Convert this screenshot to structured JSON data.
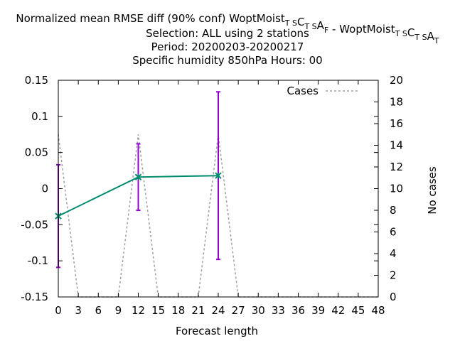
{
  "chart_data": {
    "type": "line",
    "title_lines": [
      "Normalized mean RMSE diff (90% conf) WoptMoist_TSC_TSA_F - WoptMoist_TSC_TSA_T",
      "Selection: ALL using     2 stations",
      "Period: 20200203-20200217",
      "Specific humidity 850hPa   Hours:  00"
    ],
    "title_first": {
      "parts": [
        {
          "text": "Normalized mean RMSE diff (90% conf) WoptMoist",
          "sub": false
        },
        {
          "text": "T S",
          "sub": true
        },
        {
          "text": "C",
          "sub": false
        },
        {
          "text": "T S",
          "sub": true
        },
        {
          "text": "A",
          "sub": false
        },
        {
          "text": "F",
          "sub": true
        },
        {
          "text": " - WoptMoist",
          "sub": false
        },
        {
          "text": "T S",
          "sub": true
        },
        {
          "text": "C",
          "sub": false
        },
        {
          "text": "T S",
          "sub": true
        },
        {
          "text": "A",
          "sub": false
        },
        {
          "text": "T",
          "sub": true
        }
      ]
    },
    "title_rest": [
      "Selection: ALL using     2 stations",
      "Period: 20200203-20200217",
      "Specific humidity 850hPa   Hours:  00"
    ],
    "xlabel": "Forecast length",
    "ylabel": "",
    "y2label": "No cases",
    "xlim": [
      0,
      48
    ],
    "ylim": [
      -0.15,
      0.15
    ],
    "y2lim": [
      0,
      20
    ],
    "xticks": [
      0,
      3,
      6,
      9,
      12,
      15,
      18,
      21,
      24,
      27,
      30,
      33,
      36,
      39,
      42,
      45,
      48
    ],
    "yticks": [
      -0.15,
      -0.1,
      -0.05,
      0,
      0.05,
      0.1,
      0.15
    ],
    "ytick_labels": [
      "-0.15",
      "-0.1",
      "-0.05",
      "0",
      "0.05",
      "0.1",
      "0.15"
    ],
    "y2ticks": [
      0,
      2,
      4,
      6,
      8,
      10,
      12,
      14,
      16,
      18,
      20
    ],
    "grid": false,
    "legend_position": "top-right",
    "series": [
      {
        "name": "",
        "color": "#008c6e",
        "errorbar_color": "#9400d3",
        "x": [
          0,
          12,
          24
        ],
        "y": [
          -0.038,
          0.016,
          0.018
        ],
        "err_low": [
          -0.109,
          -0.03,
          -0.098
        ],
        "err_high": [
          0.033,
          0.062,
          0.134
        ],
        "connector": [
          [
            12,
            0.016
          ],
          [
            15,
            0.0165
          ],
          [
            24,
            0.018
          ]
        ]
      },
      {
        "name": "Cases",
        "axis": "y2",
        "style": "dashed",
        "color": "#a0a0a0",
        "x": [
          0,
          3,
          9,
          12,
          15,
          21,
          24,
          27,
          48
        ],
        "y": [
          15,
          0,
          0,
          15,
          0,
          0,
          15,
          0,
          0
        ]
      }
    ]
  }
}
